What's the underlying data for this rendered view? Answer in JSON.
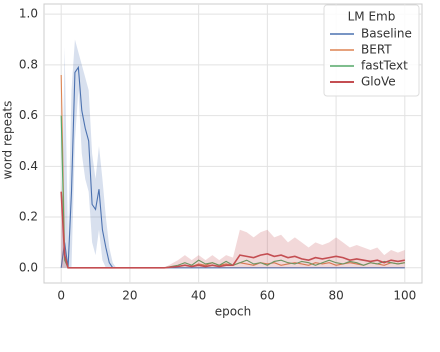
{
  "chart_data": {
    "type": "line",
    "xlabel": "epoch",
    "ylabel": "word repeats",
    "legend_title": "LM Emb",
    "legend_loc": "upper right",
    "grid": true,
    "xlim": [
      -5,
      105
    ],
    "xticks": [
      0,
      20,
      40,
      60,
      80,
      100
    ],
    "ylim": [
      -0.06,
      1.04
    ],
    "yticks": [
      {
        "value": 0,
        "label": "0.0"
      },
      {
        "value": 0.2,
        "label": "0.2"
      },
      {
        "value": 0.4,
        "label": "0.4"
      },
      {
        "value": 0.6,
        "label": "0.6"
      },
      {
        "value": 0.8,
        "label": "0.8"
      },
      {
        "value": 1,
        "label": "1.0"
      }
    ],
    "x": [
      0,
      1,
      2,
      3,
      4,
      5,
      6,
      7,
      8,
      9,
      10,
      11,
      12,
      13,
      14,
      15,
      16,
      20,
      30,
      34,
      36,
      38,
      40,
      42,
      44,
      46,
      48,
      50,
      52,
      54,
      56,
      58,
      60,
      62,
      64,
      66,
      68,
      70,
      72,
      74,
      76,
      78,
      80,
      82,
      84,
      86,
      88,
      90,
      92,
      94,
      96,
      98,
      100
    ],
    "series": [
      {
        "name": "Baseline",
        "color": "#4c72b0",
        "values": [
          0,
          0.1,
          0,
          0.3,
          0.77,
          0.79,
          0.62,
          0.55,
          0.5,
          0.25,
          0.23,
          0.31,
          0.15,
          0.08,
          0.02,
          0,
          0,
          0,
          0,
          0,
          0,
          0,
          0,
          0,
          0,
          0,
          0,
          0,
          0,
          0,
          0,
          0,
          0,
          0,
          0,
          0,
          0,
          0,
          0,
          0,
          0,
          0,
          0,
          0,
          0,
          0,
          0,
          0,
          0,
          0,
          0,
          0,
          0
        ],
        "lower": [
          0,
          0,
          0,
          0,
          0.5,
          0.7,
          0.45,
          0.35,
          0.3,
          0.1,
          0.05,
          0.15,
          0.03,
          0,
          0,
          0,
          0,
          0,
          0,
          0,
          0,
          0,
          0,
          0,
          0,
          0,
          0,
          0,
          0,
          0,
          0,
          0,
          0,
          0,
          0,
          0,
          0,
          0,
          0,
          0,
          0,
          0,
          0,
          0,
          0,
          0,
          0,
          0,
          0,
          0,
          0,
          0,
          0
        ],
        "upper": [
          0,
          0.87,
          0.1,
          0.7,
          0.9,
          0.85,
          0.8,
          0.75,
          0.7,
          0.45,
          0.35,
          0.48,
          0.35,
          0.2,
          0.08,
          0.02,
          0,
          0,
          0,
          0,
          0,
          0,
          0,
          0,
          0,
          0,
          0,
          0,
          0,
          0,
          0,
          0,
          0,
          0,
          0,
          0,
          0,
          0,
          0,
          0,
          0,
          0,
          0,
          0,
          0,
          0,
          0,
          0,
          0,
          0,
          0,
          0,
          0
        ]
      },
      {
        "name": "BERT",
        "color": "#dd8452",
        "values": [
          0.76,
          0.05,
          0,
          0,
          0,
          0,
          0,
          0,
          0,
          0,
          0,
          0,
          0,
          0,
          0,
          0,
          0,
          0,
          0,
          0.005,
          0.01,
          0.005,
          0.015,
          0.01,
          0.02,
          0.01,
          0.015,
          0.01,
          0.02,
          0.015,
          0.01,
          0.02,
          0.015,
          0.02,
          0.01,
          0.015,
          0.02,
          0.015,
          0.01,
          0.02,
          0.015,
          0.02,
          0.01,
          0.015,
          0.02,
          0.015,
          0.01,
          0.02,
          0.015,
          0.01,
          0.02,
          0.015,
          0.02
        ]
      },
      {
        "name": "fastText",
        "color": "#55a868",
        "values": [
          0.6,
          0.03,
          0,
          0,
          0,
          0,
          0,
          0,
          0,
          0,
          0,
          0,
          0,
          0,
          0,
          0,
          0,
          0,
          0,
          0.01,
          0.02,
          0.01,
          0.03,
          0.015,
          0.02,
          0.01,
          0.025,
          0.01,
          0.02,
          0.03,
          0.015,
          0.02,
          0.01,
          0.025,
          0.03,
          0.02,
          0.015,
          0.025,
          0.02,
          0.01,
          0.02,
          0.03,
          0.02,
          0.015,
          0.025,
          0.02,
          0.01,
          0.02,
          0.015,
          0.025,
          0.02,
          0.015,
          0.02
        ]
      },
      {
        "name": "GloVe",
        "color": "#c44e52",
        "values": [
          0.3,
          0.05,
          0,
          0,
          0,
          0,
          0,
          0,
          0,
          0,
          0,
          0,
          0,
          0,
          0,
          0,
          0,
          0,
          0,
          0.005,
          0.01,
          0.005,
          0.01,
          0.005,
          0.01,
          0.005,
          0.01,
          0.01,
          0.05,
          0.045,
          0.04,
          0.05,
          0.055,
          0.045,
          0.05,
          0.04,
          0.045,
          0.035,
          0.03,
          0.04,
          0.035,
          0.04,
          0.045,
          0.04,
          0.03,
          0.035,
          0.03,
          0.025,
          0.03,
          0.02,
          0.03,
          0.025,
          0.03
        ],
        "lower": [
          0,
          0,
          0,
          0,
          0,
          0,
          0,
          0,
          0,
          0,
          0,
          0,
          0,
          0,
          0,
          0,
          0,
          0,
          0,
          0,
          0,
          0,
          0,
          0,
          0,
          0,
          0,
          0,
          0,
          0,
          0,
          0,
          0,
          0,
          0,
          0,
          0,
          0,
          0,
          0,
          0,
          0,
          0,
          0,
          0,
          0,
          0,
          0,
          0,
          0,
          0,
          0,
          0
        ],
        "upper": [
          0.35,
          0.1,
          0,
          0,
          0,
          0,
          0,
          0,
          0,
          0,
          0,
          0,
          0,
          0,
          0,
          0,
          0,
          0,
          0,
          0.03,
          0.05,
          0.03,
          0.05,
          0.03,
          0.05,
          0.03,
          0.05,
          0.04,
          0.15,
          0.14,
          0.12,
          0.14,
          0.15,
          0.12,
          0.13,
          0.1,
          0.12,
          0.1,
          0.08,
          0.1,
          0.09,
          0.1,
          0.12,
          0.1,
          0.08,
          0.09,
          0.08,
          0.07,
          0.08,
          0.05,
          0.07,
          0.06,
          0.07
        ]
      }
    ]
  }
}
